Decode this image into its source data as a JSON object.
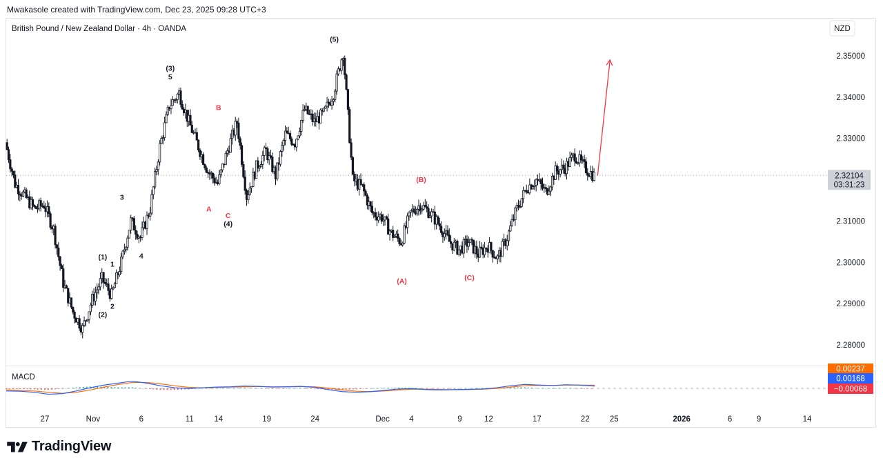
{
  "header": {
    "created_by": "Mwakasole created with TradingView.com, Dec 23, 2025 09:28 UTC+3"
  },
  "footer": {
    "brand": "TradingView"
  },
  "colors": {
    "up": "#131722",
    "down": "#131722",
    "wave_black": "#131722",
    "wave_red": "#f23645",
    "macd_line": "#2962ff",
    "signal_line": "#ff6d00",
    "hist_pos": "#26a69a",
    "hist_neg": "#ef5350",
    "price_badge": "#cfd2d8",
    "macd_badge_signal": "#ff6d00",
    "macd_badge_macd": "#2962ff",
    "macd_badge_hist": "#f23645"
  },
  "chart_data": [
    {
      "type": "candlestick",
      "title": "British Pound / New Zealand Dollar · 4h · OANDA",
      "currency": "NZD",
      "ylim": [
        2.275,
        2.359
      ],
      "y_ticks": [
        "2.35000",
        "2.34000",
        "2.33000",
        "2.31000",
        "2.30000",
        "2.29000",
        "2.28000"
      ],
      "last_price": "2.32104",
      "countdown": "03:31:23",
      "x_date_range": [
        "2025-10-23",
        "2026-01-16"
      ],
      "x_ticks": [
        {
          "date": "2025-10-27",
          "label": "27"
        },
        {
          "date": "2025-11-01",
          "label": "Nov"
        },
        {
          "date": "2025-11-06",
          "label": "6"
        },
        {
          "date": "2025-11-11",
          "label": "11"
        },
        {
          "date": "2025-11-14",
          "label": "14"
        },
        {
          "date": "2025-11-19",
          "label": "19"
        },
        {
          "date": "2025-11-24",
          "label": "24"
        },
        {
          "date": "2025-12-01",
          "label": "Dec"
        },
        {
          "date": "2025-12-04",
          "label": "4"
        },
        {
          "date": "2025-12-09",
          "label": "9"
        },
        {
          "date": "2025-12-12",
          "label": "12"
        },
        {
          "date": "2025-12-17",
          "label": "17"
        },
        {
          "date": "2025-12-22",
          "label": "22"
        },
        {
          "date": "2025-12-25",
          "label": "25"
        },
        {
          "date": "2026-01-01",
          "label": "2026"
        },
        {
          "date": "2026-01-06",
          "label": "6"
        },
        {
          "date": "2026-01-09",
          "label": "9"
        },
        {
          "date": "2026-01-14",
          "label": "14"
        }
      ],
      "price_path": [
        {
          "date": "2025-10-23",
          "close": 2.329
        },
        {
          "date": "2025-10-24",
          "close": 2.319
        },
        {
          "date": "2025-10-25",
          "close": 2.316
        },
        {
          "date": "2025-10-26",
          "close": 2.313
        },
        {
          "date": "2025-10-27",
          "close": 2.314
        },
        {
          "date": "2025-10-28",
          "close": 2.308
        },
        {
          "date": "2025-10-29",
          "close": 2.295
        },
        {
          "date": "2025-10-30",
          "close": 2.288
        },
        {
          "date": "2025-10-31",
          "close": 2.284
        },
        {
          "date": "2025-11-01",
          "close": 2.291
        },
        {
          "date": "2025-11-02",
          "close": 2.296
        },
        {
          "date": "2025-11-03",
          "close": 2.292
        },
        {
          "date": "2025-11-04",
          "close": 2.3
        },
        {
          "date": "2025-11-05",
          "close": 2.31
        },
        {
          "date": "2025-11-06",
          "close": 2.306
        },
        {
          "date": "2025-11-07",
          "close": 2.313
        },
        {
          "date": "2025-11-08",
          "close": 2.328
        },
        {
          "date": "2025-11-09",
          "close": 2.338
        },
        {
          "date": "2025-11-10",
          "close": 2.341
        },
        {
          "date": "2025-11-11",
          "close": 2.334
        },
        {
          "date": "2025-11-12",
          "close": 2.328
        },
        {
          "date": "2025-11-13",
          "close": 2.322
        },
        {
          "date": "2025-11-14",
          "close": 2.319
        },
        {
          "date": "2025-11-15",
          "close": 2.327
        },
        {
          "date": "2025-11-16",
          "close": 2.334
        },
        {
          "date": "2025-11-17",
          "close": 2.316
        },
        {
          "date": "2025-11-18",
          "close": 2.323
        },
        {
          "date": "2025-11-19",
          "close": 2.327
        },
        {
          "date": "2025-11-20",
          "close": 2.321
        },
        {
          "date": "2025-11-21",
          "close": 2.331
        },
        {
          "date": "2025-11-22",
          "close": 2.329
        },
        {
          "date": "2025-11-23",
          "close": 2.337
        },
        {
          "date": "2025-11-24",
          "close": 2.334
        },
        {
          "date": "2025-11-25",
          "close": 2.336
        },
        {
          "date": "2025-11-26",
          "close": 2.341
        },
        {
          "date": "2025-11-27",
          "close": 2.351
        },
        {
          "date": "2025-11-28",
          "close": 2.32
        },
        {
          "date": "2025-11-29",
          "close": 2.318
        },
        {
          "date": "2025-11-30",
          "close": 2.312
        },
        {
          "date": "2025-12-01",
          "close": 2.311
        },
        {
          "date": "2025-12-02",
          "close": 2.307
        },
        {
          "date": "2025-12-03",
          "close": 2.305
        },
        {
          "date": "2025-12-04",
          "close": 2.312
        },
        {
          "date": "2025-12-05",
          "close": 2.314
        },
        {
          "date": "2025-12-06",
          "close": 2.312
        },
        {
          "date": "2025-12-07",
          "close": 2.309
        },
        {
          "date": "2025-12-08",
          "close": 2.305
        },
        {
          "date": "2025-12-09",
          "close": 2.303
        },
        {
          "date": "2025-12-10",
          "close": 2.305
        },
        {
          "date": "2025-12-11",
          "close": 2.302
        },
        {
          "date": "2025-12-12",
          "close": 2.304
        },
        {
          "date": "2025-12-13",
          "close": 2.301
        },
        {
          "date": "2025-12-14",
          "close": 2.306
        },
        {
          "date": "2025-12-15",
          "close": 2.313
        },
        {
          "date": "2025-12-16",
          "close": 2.318
        },
        {
          "date": "2025-12-17",
          "close": 2.32
        },
        {
          "date": "2025-12-18",
          "close": 2.317
        },
        {
          "date": "2025-12-19",
          "close": 2.322
        },
        {
          "date": "2025-12-20",
          "close": 2.323
        },
        {
          "date": "2025-12-21",
          "close": 2.326
        },
        {
          "date": "2025-12-22",
          "close": 2.323
        },
        {
          "date": "2025-12-23",
          "close": 2.321
        }
      ],
      "annotations": [
        {
          "label": "(1)",
          "date": "2025-11-02",
          "price": 2.3007,
          "color": "black"
        },
        {
          "label": "1",
          "date": "2025-11-03",
          "price": 2.299,
          "color": "black"
        },
        {
          "label": "(2)",
          "date": "2025-11-02",
          "price": 2.2868,
          "color": "black"
        },
        {
          "label": "2",
          "date": "2025-11-03",
          "price": 2.2888,
          "color": "black"
        },
        {
          "label": "3",
          "date": "2025-11-04",
          "price": 2.3152,
          "color": "black"
        },
        {
          "label": "4",
          "date": "2025-11-06",
          "price": 2.301,
          "color": "black"
        },
        {
          "label": "(3)",
          "date": "2025-11-09",
          "price": 2.3464,
          "color": "black"
        },
        {
          "label": "5",
          "date": "2025-11-09",
          "price": 2.3443,
          "color": "black"
        },
        {
          "label": "A",
          "date": "2025-11-13",
          "price": 2.3123,
          "color": "red"
        },
        {
          "label": "B",
          "date": "2025-11-14",
          "price": 2.3369,
          "color": "red"
        },
        {
          "label": "C",
          "date": "2025-11-15",
          "price": 2.3107,
          "color": "red"
        },
        {
          "label": "(4)",
          "date": "2025-11-15",
          "price": 2.3087,
          "color": "black"
        },
        {
          "label": "(5)",
          "date": "2025-11-26",
          "price": 2.3534,
          "color": "black"
        },
        {
          "label": "(A)",
          "date": "2025-12-03",
          "price": 2.2949,
          "color": "red"
        },
        {
          "label": "(B)",
          "date": "2025-12-05",
          "price": 2.3194,
          "color": "red"
        },
        {
          "label": "(C)",
          "date": "2025-12-10",
          "price": 2.2957,
          "color": "red"
        }
      ],
      "projection_arrow": {
        "from": {
          "date": "2025-12-23",
          "price": 2.321
        },
        "to": {
          "date": "2025-12-24",
          "price": 2.349
        },
        "color": "red"
      }
    },
    {
      "type": "line",
      "title": "MACD",
      "series": [
        {
          "name": "",
          "values": [
            -0.002,
            -0.0022,
            -0.003,
            -0.0045,
            -0.004,
            -0.002,
            0.0005,
            0.0025,
            0.004,
            0.0055,
            0.004,
            0.002,
            0.0005,
            -0.0002,
            0.0005,
            0.001,
            0.0012,
            0.0018,
            0.0015,
            0.001,
            0.0012,
            0.0015,
            0.0008,
            -0.001,
            -0.0025,
            -0.003,
            -0.0025,
            -0.0015,
            -0.0005,
            -0.0002,
            -0.001,
            -0.0012,
            -0.001,
            -0.0008,
            -0.0005,
            0.0005,
            0.002,
            0.003,
            0.0025,
            0.0022,
            0.0028,
            0.0024,
            0.0017
          ]
        },
        {
          "name": "",
          "values": [
            -0.0012,
            -0.0016,
            -0.002,
            -0.003,
            -0.0038,
            -0.003,
            -0.0012,
            0.001,
            0.003,
            0.0045,
            0.0045,
            0.0035,
            0.002,
            0.0008,
            0.0004,
            0.0008,
            0.001,
            0.0012,
            0.0014,
            0.0012,
            0.0012,
            0.0013,
            0.0012,
            0.0002,
            -0.0012,
            -0.0022,
            -0.0025,
            -0.002,
            -0.0012,
            -0.0006,
            -0.0007,
            -0.0009,
            -0.001,
            -0.0009,
            -0.0007,
            -0.0001,
            0.001,
            0.002,
            0.0023,
            0.0022,
            0.0025,
            0.0025,
            0.0024
          ]
        }
      ],
      "badges": [
        "0.00237",
        "0.00168",
        "−0.00068"
      ]
    }
  ]
}
